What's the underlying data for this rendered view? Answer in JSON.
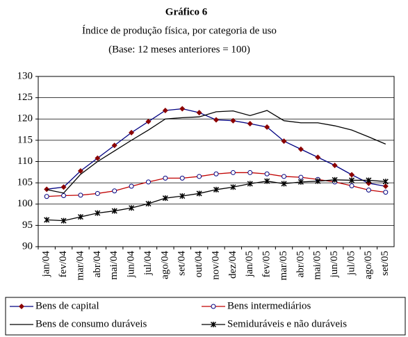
{
  "chart_data": {
    "type": "line",
    "title": "Gráfico 6",
    "subtitle": "Índice de produção física, por categoria de uso",
    "subtitle2": "(Base: 12 meses anteriores = 100)",
    "categories": [
      "jan/04",
      "fev/04",
      "mar/04",
      "abr/04",
      "mai/04",
      "jun/04",
      "jul/04",
      "ago/04",
      "set/04",
      "out/04",
      "nov/04",
      "dez/04",
      "jan/05",
      "fev/05",
      "mar/05",
      "abr/05",
      "mai/05",
      "jun/05",
      "jul/05",
      "ago/05",
      "set/05"
    ],
    "series": [
      {
        "name": "Bens de capital",
        "color": "#000080",
        "marker": "diamond",
        "marker_color": "#8b0000",
        "values": [
          103.5,
          104,
          107.8,
          110.8,
          113.8,
          116.8,
          119.4,
          122,
          122.4,
          121.5,
          119.8,
          119.6,
          118.9,
          118.1,
          114.8,
          112.9,
          111,
          109.1,
          106.9,
          104.9,
          104.2
        ]
      },
      {
        "name": "Bens intermediários",
        "color": "#c00000",
        "marker": "circle",
        "marker_color": "#000080",
        "values": [
          101.8,
          102,
          102.1,
          102.5,
          103.1,
          104.2,
          105.2,
          106.1,
          106.1,
          106.5,
          107.1,
          107.4,
          107.4,
          107.1,
          106.5,
          106.3,
          105.8,
          105.2,
          104.3,
          103.3,
          102.8
        ]
      },
      {
        "name": "Bens de consumo duráveis",
        "color": "#000000",
        "marker": "none",
        "marker_color": "#000000",
        "values": [
          103.4,
          102.6,
          107,
          110,
          112.5,
          115,
          117.4,
          120,
          120.3,
          120.5,
          121.7,
          121.9,
          120.8,
          122,
          119.6,
          119.1,
          119.1,
          118.4,
          117.4,
          115.8,
          114.1
        ]
      },
      {
        "name": "Semiduráveis e não duráveis",
        "color": "#000000",
        "marker": "star",
        "marker_color": "#000000",
        "values": [
          96.3,
          96.1,
          97,
          97.9,
          98.4,
          99.1,
          100.1,
          101.4,
          101.9,
          102.5,
          103.4,
          104,
          104.8,
          105.4,
          104.8,
          105.2,
          105.4,
          105.7,
          105.6,
          105.6,
          105.3
        ]
      }
    ],
    "ylim": [
      90,
      130
    ],
    "yticks": [
      90,
      95,
      100,
      105,
      110,
      115,
      120,
      125,
      130
    ],
    "grid": true
  }
}
